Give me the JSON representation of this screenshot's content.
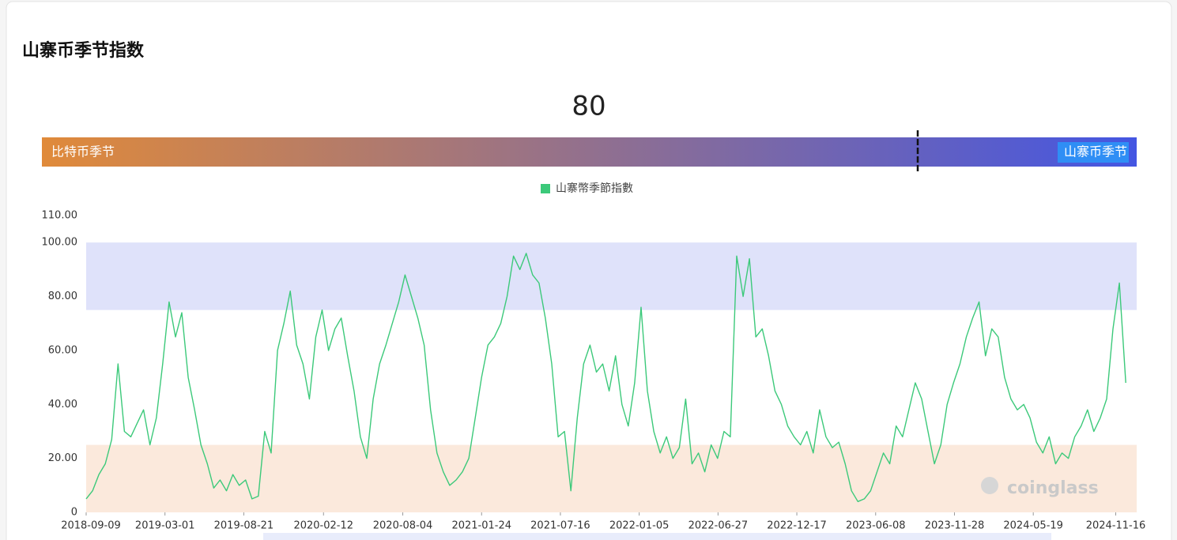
{
  "header": {
    "title": "山寨币季节指数"
  },
  "index_bar": {
    "value": 80,
    "scale": [
      0,
      100
    ],
    "left_label": "比特币季节",
    "right_label": "山寨币季节",
    "colors": [
      "#e08a3a",
      "#4456e2"
    ]
  },
  "chart_data": {
    "type": "line",
    "x": [
      "2018-09-09",
      "2018-09-23",
      "2018-10-07",
      "2018-10-21",
      "2018-11-04",
      "2018-11-18",
      "2018-12-02",
      "2018-12-16",
      "2018-12-30",
      "2019-01-13",
      "2019-01-27",
      "2019-02-10",
      "2019-02-24",
      "2019-03-10",
      "2019-03-24",
      "2019-04-07",
      "2019-04-21",
      "2019-05-05",
      "2019-05-19",
      "2019-06-02",
      "2019-06-16",
      "2019-06-30",
      "2019-07-14",
      "2019-07-28",
      "2019-08-11",
      "2019-08-25",
      "2019-09-08",
      "2019-09-22",
      "2019-10-06",
      "2019-10-20",
      "2019-11-03",
      "2019-11-17",
      "2019-12-01",
      "2019-12-15",
      "2019-12-29",
      "2020-01-12",
      "2020-01-26",
      "2020-02-09",
      "2020-02-23",
      "2020-03-08",
      "2020-03-22",
      "2020-04-05",
      "2020-04-19",
      "2020-05-03",
      "2020-05-17",
      "2020-05-31",
      "2020-06-14",
      "2020-06-28",
      "2020-07-12",
      "2020-07-26",
      "2020-08-09",
      "2020-08-23",
      "2020-09-06",
      "2020-09-20",
      "2020-10-04",
      "2020-10-18",
      "2020-11-01",
      "2020-11-15",
      "2020-11-29",
      "2020-12-13",
      "2020-12-27",
      "2021-01-10",
      "2021-01-24",
      "2021-02-07",
      "2021-02-21",
      "2021-03-07",
      "2021-03-21",
      "2021-04-04",
      "2021-04-18",
      "2021-05-02",
      "2021-05-16",
      "2021-05-30",
      "2021-06-13",
      "2021-06-27",
      "2021-07-11",
      "2021-07-25",
      "2021-08-08",
      "2021-08-22",
      "2021-09-05",
      "2021-09-19",
      "2021-10-03",
      "2021-10-17",
      "2021-10-31",
      "2021-11-14",
      "2021-11-28",
      "2021-12-12",
      "2021-12-26",
      "2022-01-09",
      "2022-01-23",
      "2022-02-06",
      "2022-02-20",
      "2022-03-06",
      "2022-03-20",
      "2022-04-03",
      "2022-04-17",
      "2022-05-01",
      "2022-05-15",
      "2022-05-29",
      "2022-06-12",
      "2022-06-26",
      "2022-07-10",
      "2022-07-24",
      "2022-08-07",
      "2022-08-21",
      "2022-09-04",
      "2022-09-18",
      "2022-10-02",
      "2022-10-16",
      "2022-10-30",
      "2022-11-13",
      "2022-11-27",
      "2022-12-11",
      "2022-12-25",
      "2023-01-08",
      "2023-01-22",
      "2023-02-05",
      "2023-02-19",
      "2023-03-05",
      "2023-03-19",
      "2023-04-02",
      "2023-04-16",
      "2023-04-30",
      "2023-05-14",
      "2023-05-28",
      "2023-06-11",
      "2023-06-25",
      "2023-07-09",
      "2023-07-23",
      "2023-08-06",
      "2023-08-20",
      "2023-09-03",
      "2023-09-17",
      "2023-10-01",
      "2023-10-15",
      "2023-10-29",
      "2023-11-12",
      "2023-11-26",
      "2023-12-10",
      "2023-12-24",
      "2024-01-07",
      "2024-01-21",
      "2024-02-04",
      "2024-02-18",
      "2024-03-03",
      "2024-03-17",
      "2024-03-31",
      "2024-04-14",
      "2024-04-28",
      "2024-05-12",
      "2024-05-26",
      "2024-06-09",
      "2024-06-23",
      "2024-07-07",
      "2024-07-21",
      "2024-08-04",
      "2024-08-18",
      "2024-09-01",
      "2024-09-15",
      "2024-09-29",
      "2024-10-13",
      "2024-10-27",
      "2024-11-10",
      "2024-11-24",
      "2024-12-08"
    ],
    "series": [
      {
        "name": "山寨幣季節指數",
        "color": "#3cc97a",
        "values": [
          5,
          8,
          14,
          18,
          27,
          55,
          30,
          28,
          33,
          38,
          25,
          35,
          55,
          78,
          65,
          74,
          50,
          38,
          25,
          18,
          9,
          12,
          8,
          14,
          10,
          12,
          5,
          6,
          30,
          22,
          60,
          70,
          82,
          62,
          55,
          42,
          65,
          75,
          60,
          68,
          72,
          58,
          45,
          28,
          20,
          42,
          55,
          62,
          70,
          78,
          88,
          80,
          72,
          62,
          38,
          22,
          15,
          10,
          12,
          15,
          20,
          35,
          50,
          62,
          65,
          70,
          80,
          95,
          90,
          96,
          88,
          85,
          72,
          55,
          28,
          30,
          8,
          35,
          55,
          62,
          52,
          55,
          45,
          58,
          40,
          32,
          48,
          76,
          45,
          30,
          22,
          28,
          20,
          24,
          42,
          18,
          22,
          15,
          25,
          20,
          30,
          28,
          95,
          80,
          94,
          65,
          68,
          58,
          45,
          40,
          32,
          28,
          25,
          30,
          22,
          38,
          28,
          24,
          26,
          18,
          8,
          4,
          5,
          8,
          15,
          22,
          18,
          32,
          28,
          38,
          48,
          42,
          30,
          18,
          25,
          40,
          48,
          55,
          65,
          72,
          78,
          58,
          68,
          65,
          50,
          42,
          38,
          40,
          35,
          26,
          22,
          28,
          18,
          22,
          20,
          28,
          32,
          38,
          30,
          35,
          42,
          68,
          85,
          48
        ]
      }
    ],
    "xlim": [
      "2018-09-09",
      "2025-01-01"
    ],
    "xticks": [
      "2018-09-09",
      "2019-03-01",
      "2019-08-21",
      "2020-02-12",
      "2020-08-04",
      "2021-01-24",
      "2021-07-16",
      "2022-01-05",
      "2022-06-27",
      "2022-12-17",
      "2023-06-08",
      "2023-11-28",
      "2024-05-19",
      "2024-11-16"
    ],
    "ylim": [
      0,
      110
    ],
    "yticks": [
      0,
      {
        "value": 20,
        "label": "20.00"
      },
      {
        "value": 40,
        "label": "40.00"
      },
      {
        "value": 60,
        "label": "60.00"
      },
      {
        "value": 80,
        "label": "80.00"
      },
      {
        "value": 100,
        "label": "100.00"
      },
      {
        "value": 110,
        "label": "110.00"
      }
    ],
    "bands": [
      {
        "from": 75,
        "to": 100,
        "color": "#dfe2fa"
      },
      {
        "from": 0,
        "to": 25,
        "color": "#fbe9dc"
      }
    ],
    "grid": false,
    "legend": "top",
    "watermark": "coinglass"
  }
}
